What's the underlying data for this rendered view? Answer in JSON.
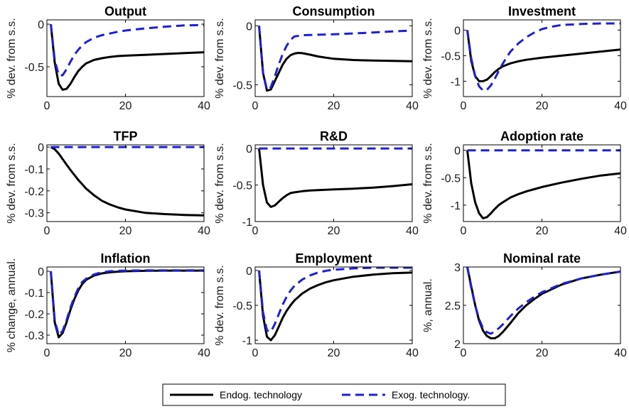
{
  "chart_data": [
    {
      "type": "line",
      "title": "Output",
      "ylabel": "% dev. from s.s.",
      "xlim": [
        0,
        40
      ],
      "ylim": [
        -0.85,
        0.05
      ],
      "xticks": [
        0,
        20,
        40
      ],
      "yticks": [
        0,
        -0.5
      ],
      "ytick_labels": [
        "0",
        "-0.5"
      ],
      "series": [
        {
          "name": "Endog. technology",
          "x": [
            1,
            2,
            3,
            4,
            5,
            6,
            7,
            8,
            9,
            10,
            12,
            14,
            16,
            18,
            20,
            25,
            30,
            35,
            40
          ],
          "y": [
            0,
            -0.45,
            -0.7,
            -0.77,
            -0.76,
            -0.7,
            -0.62,
            -0.55,
            -0.5,
            -0.46,
            -0.42,
            -0.4,
            -0.385,
            -0.375,
            -0.37,
            -0.36,
            -0.35,
            -0.34,
            -0.33
          ]
        },
        {
          "name": "Exog. technology.",
          "x": [
            1,
            2,
            3,
            4,
            5,
            6,
            7,
            8,
            9,
            10,
            12,
            14,
            16,
            18,
            20,
            25,
            30,
            35,
            40
          ],
          "y": [
            0,
            -0.42,
            -0.6,
            -0.6,
            -0.53,
            -0.44,
            -0.36,
            -0.3,
            -0.25,
            -0.21,
            -0.16,
            -0.13,
            -0.11,
            -0.09,
            -0.075,
            -0.05,
            -0.03,
            -0.015,
            -0.01
          ]
        }
      ]
    },
    {
      "type": "line",
      "title": "Consumption",
      "ylabel": "% dev. from s.s.",
      "xlim": [
        0,
        40
      ],
      "ylim": [
        -0.6,
        0.05
      ],
      "xticks": [
        0,
        20,
        40
      ],
      "yticks": [
        0,
        -0.5
      ],
      "ytick_labels": [
        "0",
        "-0.5"
      ],
      "series": [
        {
          "name": "Endog. technology",
          "x": [
            1,
            2,
            3,
            4,
            5,
            6,
            7,
            8,
            9,
            10,
            11,
            12,
            14,
            16,
            18,
            20,
            25,
            30,
            35,
            40
          ],
          "y": [
            0,
            -0.4,
            -0.55,
            -0.54,
            -0.47,
            -0.4,
            -0.33,
            -0.28,
            -0.25,
            -0.235,
            -0.23,
            -0.232,
            -0.245,
            -0.26,
            -0.27,
            -0.28,
            -0.29,
            -0.295,
            -0.298,
            -0.3
          ]
        },
        {
          "name": "Exog. technology.",
          "x": [
            1,
            2,
            3,
            4,
            5,
            6,
            7,
            8,
            9,
            10,
            12,
            14,
            16,
            18,
            20,
            25,
            30,
            35,
            40
          ],
          "y": [
            0,
            -0.4,
            -0.54,
            -0.52,
            -0.43,
            -0.33,
            -0.24,
            -0.17,
            -0.12,
            -0.09,
            -0.08,
            -0.078,
            -0.076,
            -0.074,
            -0.072,
            -0.065,
            -0.057,
            -0.048,
            -0.04
          ]
        }
      ]
    },
    {
      "type": "line",
      "title": "Investment",
      "ylabel": "% dev. from s.s.",
      "xlim": [
        0,
        40
      ],
      "ylim": [
        -1.3,
        0.2
      ],
      "xticks": [
        0,
        20,
        40
      ],
      "yticks": [
        0,
        -0.5,
        -1
      ],
      "ytick_labels": [
        "0",
        "-0.5",
        "-1"
      ],
      "series": [
        {
          "name": "Endog. technology",
          "x": [
            1,
            2,
            3,
            4,
            5,
            6,
            7,
            8,
            9,
            10,
            12,
            14,
            16,
            18,
            20,
            25,
            30,
            35,
            40
          ],
          "y": [
            0,
            -0.6,
            -0.9,
            -1.0,
            -1.0,
            -0.97,
            -0.9,
            -0.82,
            -0.76,
            -0.71,
            -0.65,
            -0.61,
            -0.58,
            -0.56,
            -0.54,
            -0.5,
            -0.46,
            -0.42,
            -0.38
          ]
        },
        {
          "name": "Exog. technology.",
          "x": [
            1,
            2,
            3,
            4,
            5,
            6,
            7,
            8,
            9,
            10,
            11,
            12,
            14,
            16,
            18,
            20,
            22,
            25,
            30,
            35,
            40
          ],
          "y": [
            0,
            -0.55,
            -0.9,
            -1.1,
            -1.18,
            -1.17,
            -1.08,
            -0.95,
            -0.8,
            -0.66,
            -0.53,
            -0.42,
            -0.26,
            -0.14,
            -0.05,
            0.02,
            0.06,
            0.1,
            0.12,
            0.13,
            0.13
          ]
        }
      ]
    },
    {
      "type": "line",
      "title": "TFP",
      "ylabel": "% dev. from s.s.",
      "xlim": [
        0,
        40
      ],
      "ylim": [
        -0.34,
        0.01
      ],
      "xticks": [
        0,
        20,
        40
      ],
      "yticks": [
        0,
        -0.1,
        -0.2,
        -0.3
      ],
      "ytick_labels": [
        "0",
        "-0.1",
        "-0.2",
        "-0.3"
      ],
      "series": [
        {
          "name": "Endog. technology",
          "x": [
            1,
            2,
            3,
            4,
            5,
            6,
            8,
            10,
            12,
            14,
            16,
            18,
            20,
            25,
            30,
            35,
            40
          ],
          "y": [
            0,
            -0.01,
            -0.03,
            -0.055,
            -0.08,
            -0.105,
            -0.15,
            -0.19,
            -0.22,
            -0.245,
            -0.262,
            -0.275,
            -0.285,
            -0.3,
            -0.306,
            -0.31,
            -0.312
          ]
        },
        {
          "name": "Exog. technology.",
          "x": [
            1,
            40
          ],
          "y": [
            0,
            0
          ]
        }
      ]
    },
    {
      "type": "line",
      "title": "R&D",
      "ylabel": "% dev. from s.s.",
      "xlim": [
        0,
        40
      ],
      "ylim": [
        -1.0,
        0.05
      ],
      "xticks": [
        0,
        20,
        40
      ],
      "yticks": [
        0,
        -0.5,
        -1
      ],
      "ytick_labels": [
        "0",
        "-0.5",
        "-1"
      ],
      "series": [
        {
          "name": "Endog. technology",
          "x": [
            1,
            2,
            3,
            4,
            5,
            6,
            7,
            8,
            9,
            10,
            12,
            14,
            16,
            18,
            20,
            25,
            30,
            35,
            40
          ],
          "y": [
            0,
            -0.5,
            -0.74,
            -0.8,
            -0.78,
            -0.73,
            -0.68,
            -0.64,
            -0.61,
            -0.6,
            -0.585,
            -0.575,
            -0.57,
            -0.565,
            -0.56,
            -0.55,
            -0.535,
            -0.515,
            -0.49
          ]
        },
        {
          "name": "Exog. technology.",
          "x": [
            1,
            40
          ],
          "y": [
            0,
            0
          ]
        }
      ]
    },
    {
      "type": "line",
      "title": "Adoption rate",
      "ylabel": "% dev. from s.s.",
      "xlim": [
        0,
        40
      ],
      "ylim": [
        -1.3,
        0.1
      ],
      "xticks": [
        0,
        20,
        40
      ],
      "yticks": [
        0,
        -0.5,
        -1
      ],
      "ytick_labels": [
        "0",
        "-0.5",
        "-1"
      ],
      "series": [
        {
          "name": "Endog. technology",
          "x": [
            1,
            2,
            3,
            4,
            5,
            6,
            7,
            8,
            9,
            10,
            12,
            14,
            16,
            18,
            20,
            25,
            30,
            35,
            40
          ],
          "y": [
            0,
            -0.6,
            -0.95,
            -1.15,
            -1.24,
            -1.22,
            -1.15,
            -1.07,
            -1.0,
            -0.95,
            -0.86,
            -0.8,
            -0.75,
            -0.71,
            -0.67,
            -0.59,
            -0.52,
            -0.46,
            -0.42
          ]
        },
        {
          "name": "Exog. technology.",
          "x": [
            1,
            40
          ],
          "y": [
            0,
            0
          ]
        }
      ]
    },
    {
      "type": "line",
      "title": "Inflation",
      "ylabel": "% change, annual.",
      "xlim": [
        0,
        40
      ],
      "ylim": [
        -0.34,
        0.02
      ],
      "xticks": [
        0,
        20,
        40
      ],
      "yticks": [
        0,
        -0.1,
        -0.2,
        -0.3
      ],
      "ytick_labels": [
        "0",
        "-0.1",
        "-0.2",
        "-0.3"
      ],
      "series": [
        {
          "name": "Endog. technology",
          "x": [
            1,
            2,
            3,
            4,
            5,
            6,
            7,
            8,
            9,
            10,
            12,
            14,
            16,
            18,
            20,
            25,
            30,
            35,
            40
          ],
          "y": [
            0,
            -0.24,
            -0.31,
            -0.29,
            -0.24,
            -0.18,
            -0.13,
            -0.09,
            -0.06,
            -0.04,
            -0.02,
            -0.01,
            -0.005,
            -0.002,
            0,
            0.002,
            0.003,
            0.003,
            0.003
          ]
        },
        {
          "name": "Exog. technology.",
          "x": [
            1,
            2,
            3,
            4,
            5,
            6,
            7,
            8,
            9,
            10,
            12,
            14,
            16,
            18,
            20,
            25,
            30,
            35,
            40
          ],
          "y": [
            0,
            -0.23,
            -0.3,
            -0.28,
            -0.23,
            -0.17,
            -0.12,
            -0.08,
            -0.05,
            -0.035,
            -0.015,
            -0.005,
            0,
            0.002,
            0.003,
            0.004,
            0.004,
            0.004,
            0.004
          ]
        }
      ]
    },
    {
      "type": "line",
      "title": "Employment",
      "ylabel": "% dev. from s.s.",
      "xlim": [
        0,
        40
      ],
      "ylim": [
        -1.05,
        0.05
      ],
      "xticks": [
        0,
        20,
        40
      ],
      "yticks": [
        0,
        -0.5,
        -1
      ],
      "ytick_labels": [
        "0",
        "-0.5",
        "-1"
      ],
      "series": [
        {
          "name": "Endog. technology",
          "x": [
            1,
            2,
            3,
            4,
            5,
            6,
            7,
            8,
            9,
            10,
            12,
            14,
            16,
            18,
            20,
            25,
            30,
            35,
            40
          ],
          "y": [
            0,
            -0.65,
            -0.95,
            -1.0,
            -0.93,
            -0.81,
            -0.68,
            -0.58,
            -0.5,
            -0.43,
            -0.33,
            -0.26,
            -0.21,
            -0.17,
            -0.14,
            -0.09,
            -0.06,
            -0.04,
            -0.03
          ]
        },
        {
          "name": "Exog. technology.",
          "x": [
            1,
            2,
            3,
            4,
            5,
            6,
            7,
            8,
            9,
            10,
            12,
            14,
            16,
            18,
            20,
            25,
            30,
            35,
            40
          ],
          "y": [
            0,
            -0.6,
            -0.86,
            -0.88,
            -0.77,
            -0.63,
            -0.49,
            -0.38,
            -0.29,
            -0.22,
            -0.13,
            -0.07,
            -0.03,
            -0.005,
            0.01,
            0.03,
            0.04,
            0.04,
            0.04
          ]
        }
      ]
    },
    {
      "type": "line",
      "title": "Nominal rate",
      "ylabel": "%, annual.",
      "xlim": [
        0,
        40
      ],
      "ylim": [
        2,
        3
      ],
      "xticks": [
        0,
        20,
        40
      ],
      "yticks": [
        3,
        2.5,
        2
      ],
      "ytick_labels": [
        "3",
        "2.5",
        "2"
      ],
      "series": [
        {
          "name": "Endog. technology",
          "x": [
            1,
            2,
            3,
            4,
            5,
            6,
            7,
            8,
            9,
            10,
            12,
            14,
            16,
            18,
            20,
            25,
            30,
            35,
            40
          ],
          "y": [
            3,
            2.75,
            2.5,
            2.3,
            2.17,
            2.1,
            2.07,
            2.07,
            2.1,
            2.15,
            2.27,
            2.4,
            2.5,
            2.58,
            2.65,
            2.77,
            2.85,
            2.9,
            2.94
          ]
        },
        {
          "name": "Exog. technology.",
          "x": [
            1,
            2,
            3,
            4,
            5,
            6,
            7,
            8,
            9,
            10,
            12,
            14,
            16,
            18,
            20,
            25,
            30,
            35,
            40
          ],
          "y": [
            3,
            2.73,
            2.5,
            2.32,
            2.2,
            2.15,
            2.13,
            2.16,
            2.2,
            2.25,
            2.36,
            2.46,
            2.54,
            2.61,
            2.67,
            2.78,
            2.85,
            2.9,
            2.94
          ]
        }
      ]
    }
  ],
  "legend": {
    "position": "bottom-center",
    "entries": [
      {
        "label": "Endog. technology",
        "color": "#000000",
        "style": "solid"
      },
      {
        "label": "Exog. technology.",
        "color": "#1f1fd6",
        "style": "dashed"
      }
    ]
  }
}
